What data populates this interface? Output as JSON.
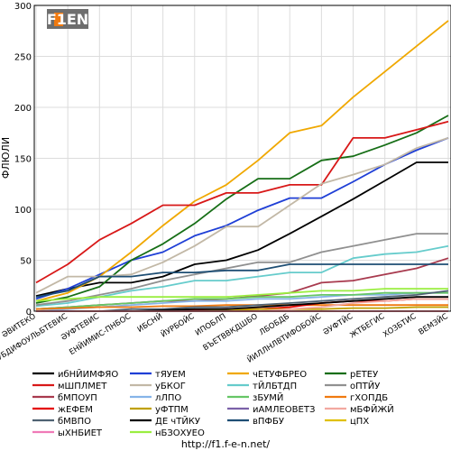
{
  "footer_url": "http://f1.f-e-n.net/",
  "logo_text": "F1EN",
  "chart_data": {
    "type": "line",
    "ylabel": "ФЛЮЛИ",
    "xlabel": "",
    "ylim": [
      0,
      300
    ],
    "yticks": [
      0,
      50,
      100,
      150,
      200,
      250,
      300
    ],
    "grid": true,
    "legend_placement": "bottom",
    "categories": [
      "ӘВИТЕКО",
      "ӘУБДИФОУЛЬБТЕВИС",
      "ӘУФТЕВИС",
      "ЕНЙИМИС-ПНБОС",
      "ИБСНЙ",
      "ЙУРБОЙС",
      "ИПОБЛП",
      "ВЪЕТВВКДШБО",
      "ЛБОБДБ",
      "ЙИЛЛНЛВТИФОБОЙС",
      "ӘУФТЙС",
      "ЖТБЕГИС",
      "ХОЗБТИС",
      "ВЕМЗЙС"
    ],
    "series": [
      {
        "name": "ибНЙИМФЯО",
        "color": "#000000",
        "values": [
          15,
          22,
          28,
          28,
          34,
          46,
          50,
          60,
          76,
          93,
          110,
          128,
          146,
          146
        ]
      },
      {
        "name": "тЯУЕМ",
        "color": "#1f3fd6",
        "values": [
          12,
          22,
          36,
          50,
          58,
          74,
          84,
          99,
          111,
          111,
          127,
          144,
          158,
          170
        ]
      },
      {
        "name": "чЕТУФБРЕО",
        "color": "#f0a800",
        "values": [
          10,
          18,
          34,
          58,
          84,
          108,
          124,
          148,
          175,
          182,
          210,
          235,
          260,
          285
        ]
      },
      {
        "name": "рЕТЕУ",
        "color": "#166e16",
        "values": [
          8,
          14,
          24,
          50,
          66,
          86,
          110,
          130,
          130,
          148,
          152,
          163,
          175,
          192
        ]
      },
      {
        "name": "мШПЛМЕТ",
        "color": "#d81818",
        "values": [
          28,
          46,
          70,
          86,
          104,
          104,
          116,
          116,
          124,
          124,
          170,
          170,
          178,
          186
        ]
      },
      {
        "name": "уБКОГ",
        "color": "#c2b8a6",
        "values": [
          18,
          34,
          34,
          36,
          48,
          64,
          83,
          83,
          104,
          125,
          134,
          144,
          160,
          170
        ]
      },
      {
        "name": "тЙЛБТДП",
        "color": "#66cccc",
        "values": [
          5,
          8,
          14,
          20,
          24,
          30,
          30,
          34,
          38,
          38,
          52,
          56,
          58,
          64
        ]
      },
      {
        "name": "оПТЙУ",
        "color": "#909090",
        "values": [
          6,
          10,
          16,
          22,
          30,
          36,
          42,
          48,
          48,
          58,
          64,
          70,
          76,
          76
        ]
      },
      {
        "name": "бМПОУП",
        "color": "#a83a4e",
        "values": [
          2,
          4,
          6,
          8,
          10,
          10,
          12,
          15,
          18,
          28,
          30,
          36,
          42,
          52
        ]
      },
      {
        "name": "лЛПО",
        "color": "#86b4e8",
        "values": [
          0,
          2,
          4,
          6,
          8,
          10,
          10,
          12,
          12,
          14,
          16,
          16,
          18,
          18
        ]
      },
      {
        "name": "зБУМЙ",
        "color": "#66c666",
        "values": [
          2,
          4,
          6,
          8,
          10,
          12,
          12,
          14,
          14,
          16,
          16,
          18,
          18,
          18
        ]
      },
      {
        "name": "гХОПДБ",
        "color": "#f07a10",
        "values": [
          2,
          3,
          4,
          4,
          5,
          5,
          6,
          6,
          6,
          6,
          6,
          6,
          6,
          6
        ]
      },
      {
        "name": "жЕФЕМ",
        "color": "#e40000",
        "values": [
          0,
          0,
          0,
          0,
          0,
          1,
          2,
          2,
          4,
          8,
          10,
          10,
          12,
          12
        ]
      },
      {
        "name": "уФТПМ",
        "color": "#c0a000",
        "values": [
          0,
          0,
          0,
          0,
          0,
          0,
          1,
          2,
          2,
          2,
          3,
          3,
          4,
          4
        ]
      },
      {
        "name": "иАМЛЕОВЕТЗ",
        "color": "#7b61a8",
        "values": [
          0,
          0,
          0,
          0,
          0,
          0,
          0,
          0,
          0,
          0,
          0,
          0,
          0,
          0
        ]
      },
      {
        "name": "мБФЙЖЙ",
        "color": "#f2a8a0",
        "values": [
          0,
          0,
          0,
          0,
          0,
          0,
          0,
          0,
          2,
          4,
          8,
          10,
          12,
          12
        ]
      },
      {
        "name": "бМВПО",
        "color": "#4f6272",
        "values": [
          0,
          0,
          0,
          2,
          2,
          4,
          4,
          6,
          8,
          10,
          12,
          14,
          16,
          20
        ]
      },
      {
        "name": "ДЕ чТЙКУ",
        "color": "#000000",
        "values": [
          0,
          0,
          0,
          0,
          1,
          2,
          2,
          4,
          6,
          8,
          10,
          12,
          14,
          14
        ]
      },
      {
        "name": "вПФБУ",
        "color": "#1e4e74",
        "values": [
          14,
          20,
          34,
          34,
          38,
          38,
          40,
          40,
          46,
          46,
          46,
          46,
          46,
          46
        ]
      },
      {
        "name": "цПХ",
        "color": "#e0c000",
        "values": [
          0,
          0,
          0,
          0,
          0,
          0,
          0,
          0,
          0,
          0,
          0,
          0,
          0,
          0
        ]
      },
      {
        "name": "ыХНБИЕТ",
        "color": "#f07ab8",
        "values": [
          0,
          0,
          0,
          0,
          0,
          0,
          0,
          0,
          0,
          0,
          0,
          0,
          0,
          0
        ]
      },
      {
        "name": "нБЗОХУЕО",
        "color": "#9aee40",
        "values": [
          10,
          12,
          14,
          14,
          14,
          14,
          14,
          16,
          18,
          20,
          20,
          22,
          22,
          22
        ]
      }
    ]
  }
}
